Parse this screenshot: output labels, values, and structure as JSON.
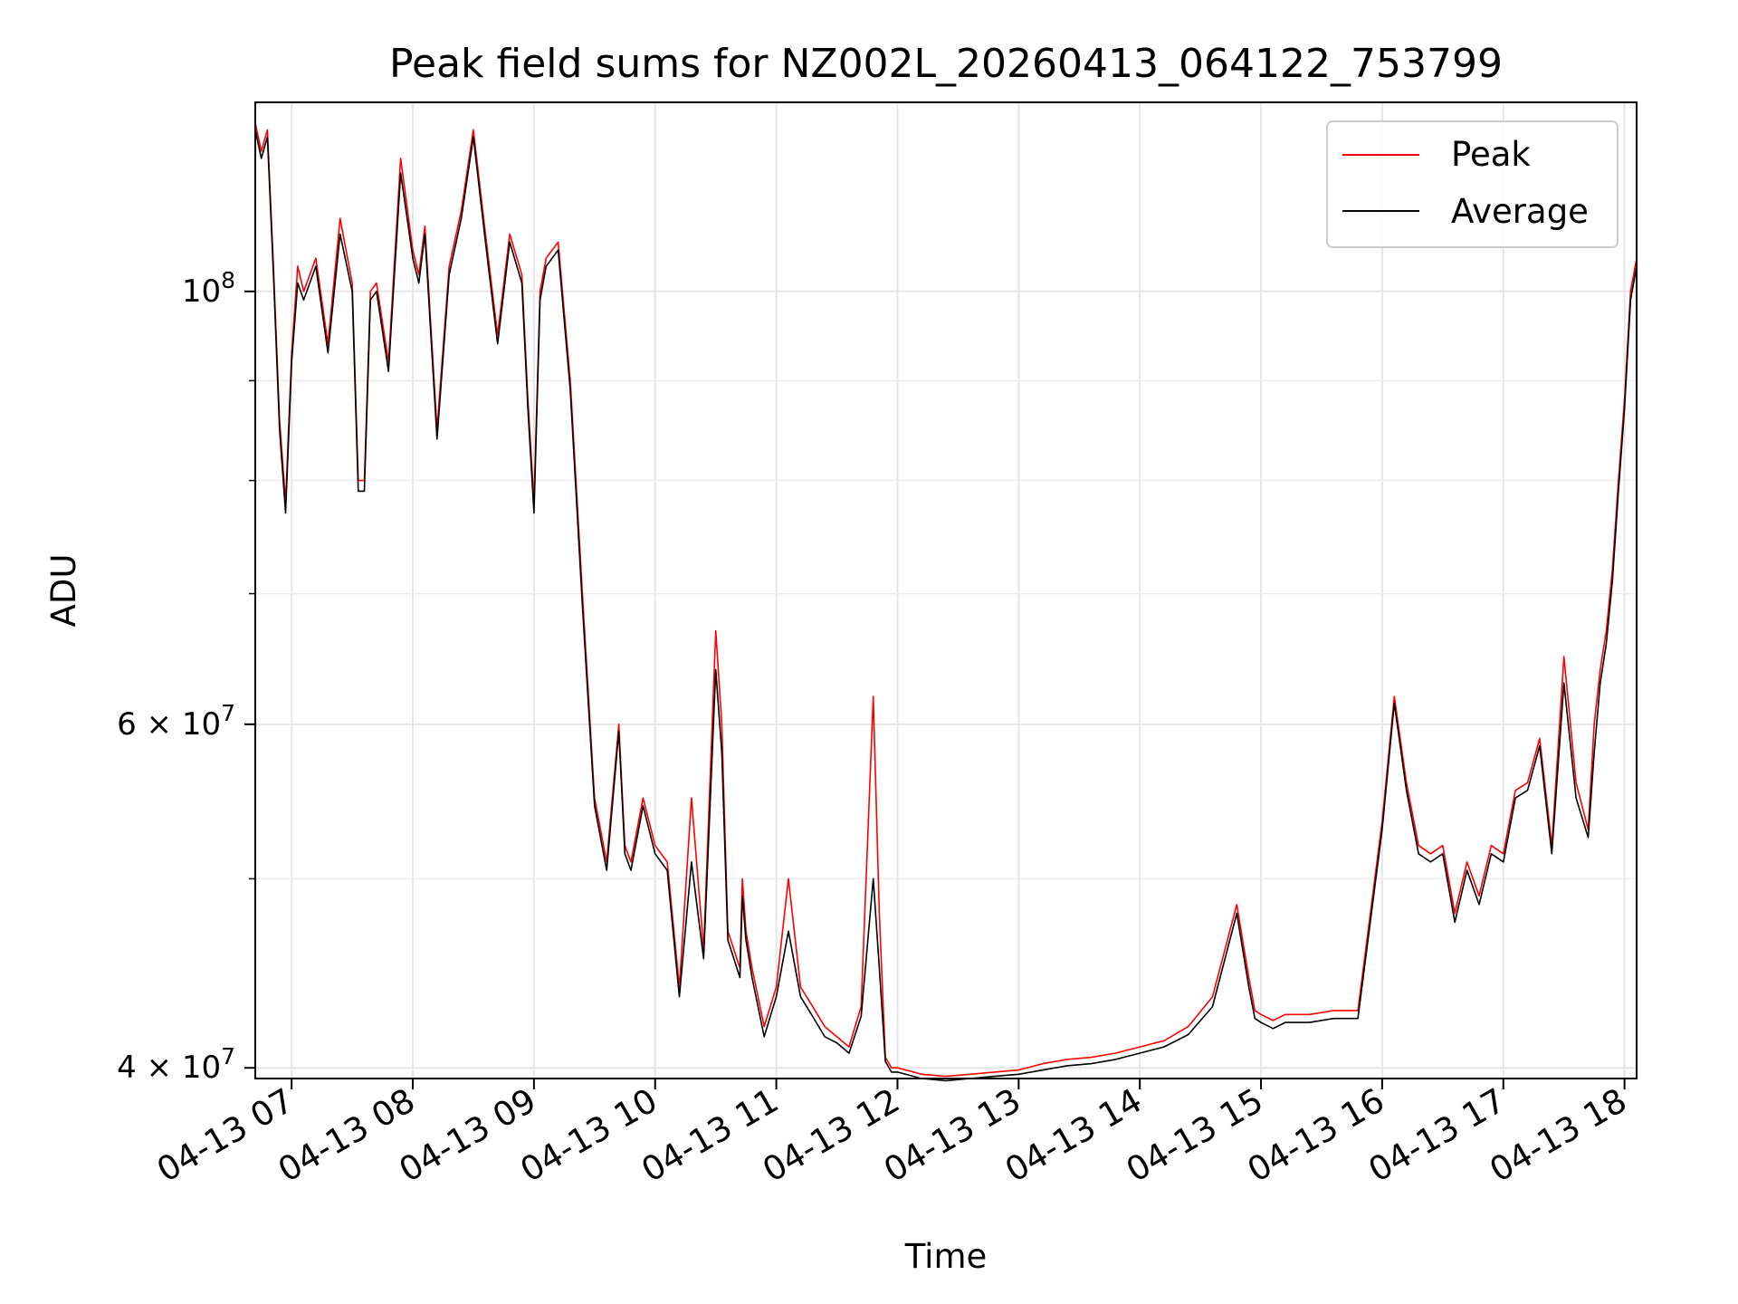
{
  "chart_data": {
    "type": "line",
    "title": "Peak field sums for NZ002L_20260413_064122_753799",
    "xlabel": "Time",
    "ylabel": "ADU",
    "yscale": "log",
    "grid": true,
    "legend_position": "upper right",
    "x_time_unit": "hour of 2026-04-13",
    "xlim": [
      6.7,
      18.1
    ],
    "ylim": [
      39500000,
      125000000
    ],
    "x_tick_values": [
      7,
      8,
      9,
      10,
      11,
      12,
      13,
      14,
      15,
      16,
      17,
      18
    ],
    "x_tick_labels": [
      "04-13 07",
      "04-13 08",
      "04-13 09",
      "04-13 10",
      "04-13 11",
      "04-13 12",
      "04-13 13",
      "04-13 14",
      "04-13 15",
      "04-13 16",
      "04-13 17",
      "04-13 18"
    ],
    "y_major_ticks": [
      {
        "value": 40000000,
        "label_base": "4 × 10",
        "label_exp": "7"
      },
      {
        "value": 60000000,
        "label_base": "6 × 10",
        "label_exp": "7"
      },
      {
        "value": 100000000,
        "label_base": "10",
        "label_exp": "8"
      }
    ],
    "y_minor_ticks": [
      50000000,
      70000000,
      80000000,
      90000000
    ],
    "colors": {
      "Peak": "#ff0000",
      "Average": "#000000"
    },
    "series": [
      {
        "name": "Peak",
        "x": [
          6.7,
          6.75,
          6.8,
          6.85,
          6.9,
          6.95,
          7.0,
          7.05,
          7.1,
          7.2,
          7.3,
          7.4,
          7.5,
          7.55,
          7.6,
          7.65,
          7.7,
          7.8,
          7.9,
          8.0,
          8.05,
          8.1,
          8.2,
          8.3,
          8.4,
          8.5,
          8.6,
          8.7,
          8.8,
          8.9,
          8.95,
          9.0,
          9.05,
          9.1,
          9.2,
          9.3,
          9.4,
          9.5,
          9.6,
          9.7,
          9.75,
          9.8,
          9.9,
          10.0,
          10.1,
          10.2,
          10.3,
          10.4,
          10.5,
          10.55,
          10.6,
          10.7,
          10.72,
          10.75,
          10.8,
          10.9,
          11.0,
          11.1,
          11.2,
          11.3,
          11.4,
          11.5,
          11.6,
          11.7,
          11.8,
          11.85,
          11.9,
          11.95,
          12.0,
          12.2,
          12.4,
          12.6,
          12.8,
          13.0,
          13.2,
          13.4,
          13.6,
          13.8,
          14.0,
          14.2,
          14.4,
          14.6,
          14.8,
          14.9,
          14.95,
          15.0,
          15.1,
          15.2,
          15.4,
          15.6,
          15.8,
          16.0,
          16.1,
          16.2,
          16.3,
          16.4,
          16.5,
          16.6,
          16.7,
          16.8,
          16.9,
          17.0,
          17.1,
          17.2,
          17.3,
          17.4,
          17.5,
          17.6,
          17.7,
          17.75,
          17.8,
          17.85,
          17.9,
          17.95,
          18.0,
          18.05,
          18.1
        ],
        "y": [
          122000000,
          118000000,
          121000000,
          103000000,
          86000000,
          78000000,
          93000000,
          103000000,
          100000000,
          104000000,
          94000000,
          109000000,
          101000000,
          80000000,
          80000000,
          100000000,
          101000000,
          92000000,
          117000000,
          105000000,
          102000000,
          108000000,
          85000000,
          103000000,
          110000000,
          121000000,
          107000000,
          95000000,
          107000000,
          102000000,
          88000000,
          78000000,
          100000000,
          104000000,
          106000000,
          90000000,
          70000000,
          55000000,
          51000000,
          60000000,
          52000000,
          51000000,
          55000000,
          52000000,
          51000000,
          44000000,
          55000000,
          46000000,
          67000000,
          60000000,
          47000000,
          45000000,
          50000000,
          47000000,
          45000000,
          42000000,
          44000000,
          50000000,
          44000000,
          43000000,
          42000000,
          41500000,
          41000000,
          43000000,
          62000000,
          48000000,
          40500000,
          40000000,
          40000000,
          39700000,
          39600000,
          39700000,
          39800000,
          39900000,
          40200000,
          40400000,
          40500000,
          40700000,
          41000000,
          41300000,
          42000000,
          43500000,
          48500000,
          44500000,
          42800000,
          42600000,
          42300000,
          42600000,
          42600000,
          42800000,
          42800000,
          53500000,
          62000000,
          56000000,
          52000000,
          51500000,
          52000000,
          48000000,
          51000000,
          49000000,
          52000000,
          51500000,
          55500000,
          56000000,
          59000000,
          52000000,
          65000000,
          56000000,
          53000000,
          60000000,
          64000000,
          67000000,
          72000000,
          80000000,
          88000000,
          100000000,
          104000000
        ],
        "markers": "line"
      },
      {
        "name": "Average",
        "x": [
          6.7,
          6.75,
          6.8,
          6.85,
          6.9,
          6.95,
          7.0,
          7.05,
          7.1,
          7.2,
          7.3,
          7.4,
          7.5,
          7.55,
          7.6,
          7.65,
          7.7,
          7.8,
          7.9,
          8.0,
          8.05,
          8.1,
          8.2,
          8.3,
          8.4,
          8.5,
          8.6,
          8.7,
          8.8,
          8.9,
          8.95,
          9.0,
          9.05,
          9.1,
          9.2,
          9.3,
          9.4,
          9.5,
          9.6,
          9.7,
          9.75,
          9.8,
          9.9,
          10.0,
          10.1,
          10.2,
          10.3,
          10.4,
          10.5,
          10.55,
          10.6,
          10.7,
          10.72,
          10.75,
          10.8,
          10.9,
          11.0,
          11.1,
          11.2,
          11.3,
          11.4,
          11.5,
          11.6,
          11.7,
          11.8,
          11.85,
          11.9,
          11.95,
          12.0,
          12.2,
          12.4,
          12.6,
          12.8,
          13.0,
          13.2,
          13.4,
          13.6,
          13.8,
          14.0,
          14.2,
          14.4,
          14.6,
          14.8,
          14.9,
          14.95,
          15.0,
          15.1,
          15.2,
          15.4,
          15.6,
          15.8,
          16.0,
          16.1,
          16.2,
          16.3,
          16.4,
          16.5,
          16.6,
          16.7,
          16.8,
          16.9,
          17.0,
          17.1,
          17.2,
          17.3,
          17.4,
          17.5,
          17.6,
          17.7,
          17.75,
          17.8,
          17.85,
          17.9,
          17.95,
          18.0,
          18.05,
          18.1
        ],
        "y": [
          121000000,
          117000000,
          120000000,
          102000000,
          85000000,
          77000000,
          92000000,
          101000000,
          99000000,
          103000000,
          93000000,
          107000000,
          100000000,
          79000000,
          79000000,
          99000000,
          100000000,
          91000000,
          115000000,
          104000000,
          101000000,
          107000000,
          84000000,
          102000000,
          109000000,
          120000000,
          106000000,
          94000000,
          106000000,
          101000000,
          87000000,
          77000000,
          99000000,
          103000000,
          105000000,
          89000000,
          69000000,
          54500000,
          50500000,
          59500000,
          51500000,
          50500000,
          54500000,
          51500000,
          50500000,
          43500000,
          51000000,
          45500000,
          64000000,
          58000000,
          46500000,
          44500000,
          49000000,
          46500000,
          44500000,
          41500000,
          43500000,
          47000000,
          43500000,
          42500000,
          41500000,
          41200000,
          40700000,
          42500000,
          50000000,
          45000000,
          40300000,
          39800000,
          39800000,
          39500000,
          39400000,
          39500000,
          39600000,
          39700000,
          39900000,
          40100000,
          40200000,
          40400000,
          40700000,
          41000000,
          41600000,
          43000000,
          48000000,
          44000000,
          42400000,
          42200000,
          41900000,
          42200000,
          42200000,
          42400000,
          42400000,
          53000000,
          61500000,
          55500000,
          51500000,
          51000000,
          51500000,
          47500000,
          50500000,
          48500000,
          51500000,
          51000000,
          55000000,
          55500000,
          58500000,
          51500000,
          63000000,
          55000000,
          52500000,
          58000000,
          63000000,
          66000000,
          71000000,
          79000000,
          87000000,
          99000000,
          103000000
        ],
        "markers": "line"
      }
    ]
  }
}
